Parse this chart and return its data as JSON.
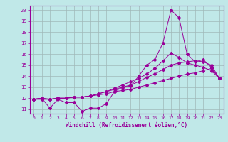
{
  "xlabel": "Windchill (Refroidissement éolien,°C)",
  "bg_color": "#c0e8e8",
  "line_color": "#990099",
  "grid_color": "#a0b8b8",
  "xlim": [
    -0.5,
    23.5
  ],
  "ylim": [
    10.6,
    20.4
  ],
  "xticks": [
    0,
    1,
    2,
    3,
    4,
    5,
    6,
    7,
    8,
    9,
    10,
    11,
    12,
    13,
    14,
    15,
    16,
    17,
    18,
    19,
    20,
    21,
    22,
    23
  ],
  "yticks": [
    11,
    12,
    13,
    14,
    15,
    16,
    17,
    18,
    19,
    20
  ],
  "line1_y": [
    11.9,
    12.0,
    11.1,
    11.9,
    11.6,
    11.6,
    10.8,
    11.1,
    11.1,
    11.5,
    12.6,
    13.0,
    13.1,
    14.0,
    15.0,
    15.5,
    17.0,
    20.0,
    19.3,
    16.0,
    15.3,
    15.5,
    14.8,
    13.8
  ],
  "line2_y": [
    11.9,
    11.9,
    11.9,
    12.0,
    12.0,
    12.1,
    12.1,
    12.2,
    12.3,
    12.4,
    12.6,
    12.7,
    12.8,
    13.0,
    13.2,
    13.4,
    13.6,
    13.8,
    14.0,
    14.2,
    14.3,
    14.5,
    14.7,
    13.8
  ],
  "line3_y": [
    11.9,
    12.0,
    11.9,
    12.0,
    12.0,
    12.1,
    12.1,
    12.2,
    12.4,
    12.6,
    12.8,
    13.0,
    13.2,
    13.5,
    13.9,
    14.2,
    14.6,
    15.0,
    15.2,
    15.3,
    15.4,
    15.3,
    15.0,
    13.8
  ],
  "line4_y": [
    11.9,
    12.0,
    11.9,
    12.0,
    12.0,
    12.1,
    12.1,
    12.2,
    12.4,
    12.6,
    12.9,
    13.2,
    13.5,
    13.8,
    14.2,
    14.7,
    15.4,
    16.1,
    15.7,
    15.2,
    15.0,
    14.8,
    14.5,
    13.8
  ]
}
